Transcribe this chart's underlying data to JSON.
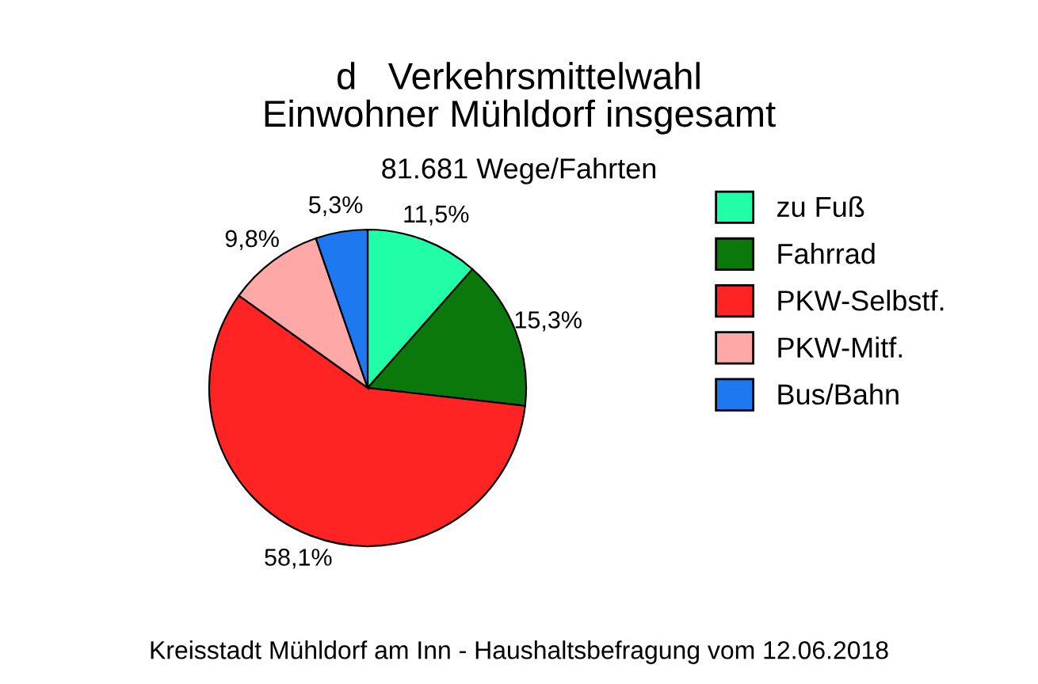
{
  "chart_data": {
    "type": "pie",
    "title": "d   Verkehrsmittelwahl\nEinwohner Mühldorf insgesamt",
    "subtitle": "81.681 Wege/Fahrten",
    "categories": [
      "zu Fuß",
      "Fahrrad",
      "PKW-Selbstf.",
      "PKW-Mitf.",
      "Bus/Bahn"
    ],
    "values": [
      11.5,
      15.3,
      58.1,
      9.8,
      5.3
    ],
    "value_labels": [
      "11,5%",
      "15,3%",
      "58,1%",
      "9,8%",
      "5,3%"
    ],
    "colors": [
      "#20ffa8",
      "#0a780a",
      "#ff2424",
      "#ffa8a8",
      "#1e78f0"
    ],
    "legend": "right",
    "annotations": [
      "Kreisstadt Mühldorf am Inn - Haushaltsbefragung vom 12.06.2018"
    ]
  }
}
